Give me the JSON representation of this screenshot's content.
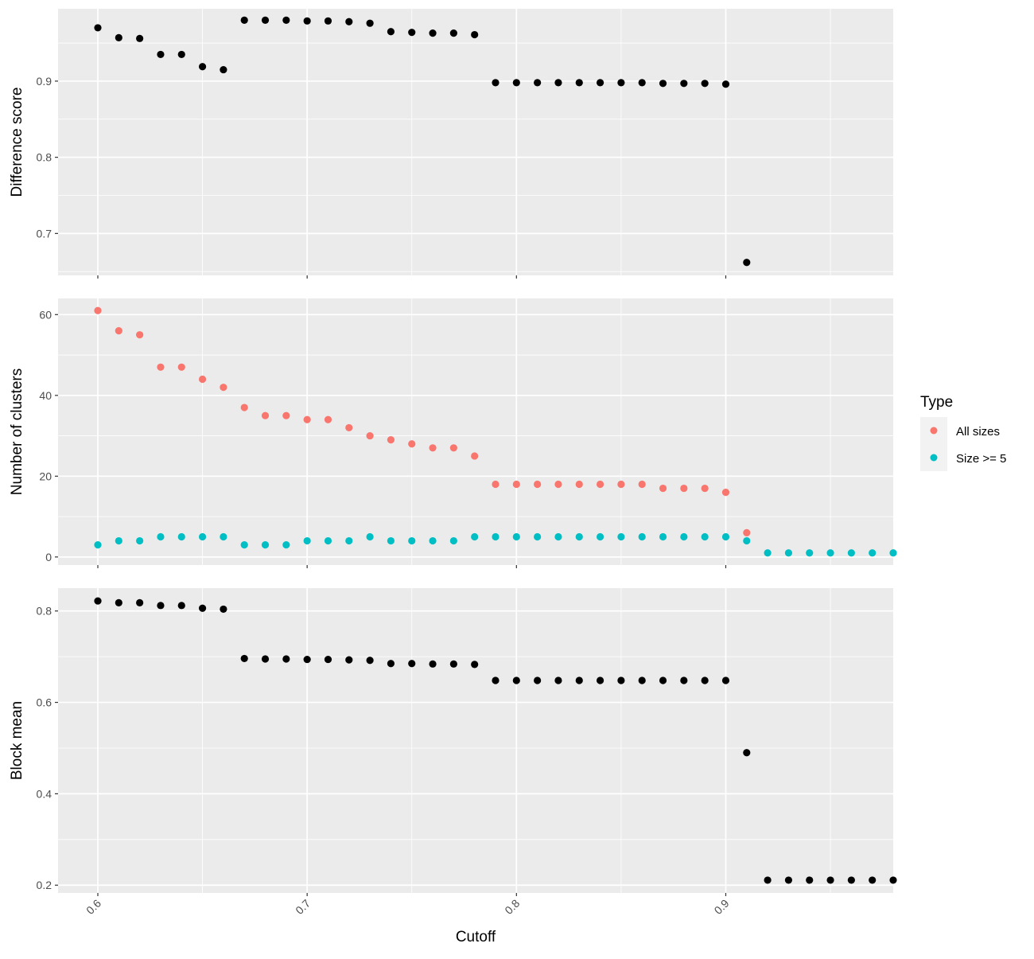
{
  "chart_data": [
    {
      "type": "scatter",
      "ylabel": "Difference score",
      "xlim": [
        0.581,
        0.98
      ],
      "ylim": [
        0.645,
        0.995
      ],
      "yticks": [
        0.7,
        0.8,
        0.9
      ],
      "ytick_labels": [
        "0.7",
        "0.8",
        "0.9"
      ],
      "show_x_tick_labels": false,
      "series": [
        {
          "color": "#000000",
          "x": [
            0.6,
            0.61,
            0.62,
            0.63,
            0.64,
            0.65,
            0.66,
            0.67,
            0.68,
            0.69,
            0.7,
            0.71,
            0.72,
            0.73,
            0.74,
            0.75,
            0.76,
            0.77,
            0.78,
            0.79,
            0.8,
            0.81,
            0.82,
            0.83,
            0.84,
            0.85,
            0.86,
            0.87,
            0.88,
            0.89,
            0.9,
            0.91
          ],
          "y": [
            0.97,
            0.957,
            0.956,
            0.935,
            0.935,
            0.919,
            0.915,
            0.98,
            0.98,
            0.98,
            0.979,
            0.979,
            0.978,
            0.976,
            0.965,
            0.964,
            0.963,
            0.963,
            0.961,
            0.898,
            0.898,
            0.898,
            0.898,
            0.898,
            0.898,
            0.898,
            0.898,
            0.897,
            0.897,
            0.897,
            0.896,
            0.662
          ]
        }
      ]
    },
    {
      "type": "scatter",
      "ylabel": "Number of clusters",
      "xlim": [
        0.581,
        0.98
      ],
      "ylim": [
        -2,
        64
      ],
      "yticks": [
        0,
        20,
        40,
        60
      ],
      "ytick_labels": [
        "0",
        "20",
        "40",
        "60"
      ],
      "show_x_tick_labels": false,
      "series": [
        {
          "name": "All sizes",
          "color": "#F8766D",
          "x": [
            0.6,
            0.61,
            0.62,
            0.63,
            0.64,
            0.65,
            0.66,
            0.67,
            0.68,
            0.69,
            0.7,
            0.71,
            0.72,
            0.73,
            0.74,
            0.75,
            0.76,
            0.77,
            0.78,
            0.79,
            0.8,
            0.81,
            0.82,
            0.83,
            0.84,
            0.85,
            0.86,
            0.87,
            0.88,
            0.89,
            0.9,
            0.91
          ],
          "y": [
            61,
            56,
            55,
            47,
            47,
            44,
            42,
            37,
            35,
            35,
            34,
            34,
            32,
            30,
            29,
            28,
            27,
            27,
            25,
            18,
            18,
            18,
            18,
            18,
            18,
            18,
            18,
            17,
            17,
            17,
            16,
            6
          ]
        },
        {
          "name": "Size >= 5",
          "color": "#00BFC4",
          "x": [
            0.6,
            0.61,
            0.62,
            0.63,
            0.64,
            0.65,
            0.66,
            0.67,
            0.68,
            0.69,
            0.7,
            0.71,
            0.72,
            0.73,
            0.74,
            0.75,
            0.76,
            0.77,
            0.78,
            0.79,
            0.8,
            0.81,
            0.82,
            0.83,
            0.84,
            0.85,
            0.86,
            0.87,
            0.88,
            0.89,
            0.9,
            0.91,
            0.92,
            0.93,
            0.94,
            0.95,
            0.96,
            0.97,
            0.98
          ],
          "y": [
            3,
            4,
            4,
            5,
            5,
            5,
            5,
            3,
            3,
            3,
            4,
            4,
            4,
            5,
            4,
            4,
            4,
            4,
            5,
            5,
            5,
            5,
            5,
            5,
            5,
            5,
            5,
            5,
            5,
            5,
            5,
            4,
            1,
            1,
            1,
            1,
            1,
            1,
            1
          ]
        }
      ]
    },
    {
      "type": "scatter",
      "ylabel": "Block mean",
      "xlabel": "Cutoff",
      "xlim": [
        0.581,
        0.98
      ],
      "ylim": [
        0.183,
        0.85
      ],
      "yticks": [
        0.2,
        0.4,
        0.6,
        0.8
      ],
      "ytick_labels": [
        "0.2",
        "0.4",
        "0.6",
        "0.8"
      ],
      "show_x_tick_labels": true,
      "xticks": [
        0.6,
        0.7,
        0.8,
        0.9
      ],
      "xtick_labels": [
        "0.6",
        "0.7",
        "0.8",
        "0.9"
      ],
      "series": [
        {
          "color": "#000000",
          "x": [
            0.6,
            0.61,
            0.62,
            0.63,
            0.64,
            0.65,
            0.66,
            0.67,
            0.68,
            0.69,
            0.7,
            0.71,
            0.72,
            0.73,
            0.74,
            0.75,
            0.76,
            0.77,
            0.78,
            0.79,
            0.8,
            0.81,
            0.82,
            0.83,
            0.84,
            0.85,
            0.86,
            0.87,
            0.88,
            0.89,
            0.9,
            0.91,
            0.92,
            0.93,
            0.94,
            0.95,
            0.96,
            0.97,
            0.98
          ],
          "y": [
            0.822,
            0.818,
            0.818,
            0.812,
            0.812,
            0.806,
            0.804,
            0.696,
            0.695,
            0.695,
            0.694,
            0.694,
            0.693,
            0.692,
            0.685,
            0.685,
            0.684,
            0.684,
            0.683,
            0.648,
            0.648,
            0.648,
            0.648,
            0.648,
            0.648,
            0.648,
            0.648,
            0.648,
            0.648,
            0.648,
            0.648,
            0.49,
            0.211,
            0.211,
            0.211,
            0.211,
            0.211,
            0.211,
            0.211
          ]
        }
      ]
    }
  ],
  "legend": {
    "title": "Type",
    "position": "right",
    "items": [
      {
        "label": "All sizes",
        "color": "#F8766D"
      },
      {
        "label": "Size >= 5",
        "color": "#00BFC4"
      }
    ]
  },
  "grid": true,
  "panel_background": "#EBEBEB",
  "grid_color": "#FFFFFF"
}
